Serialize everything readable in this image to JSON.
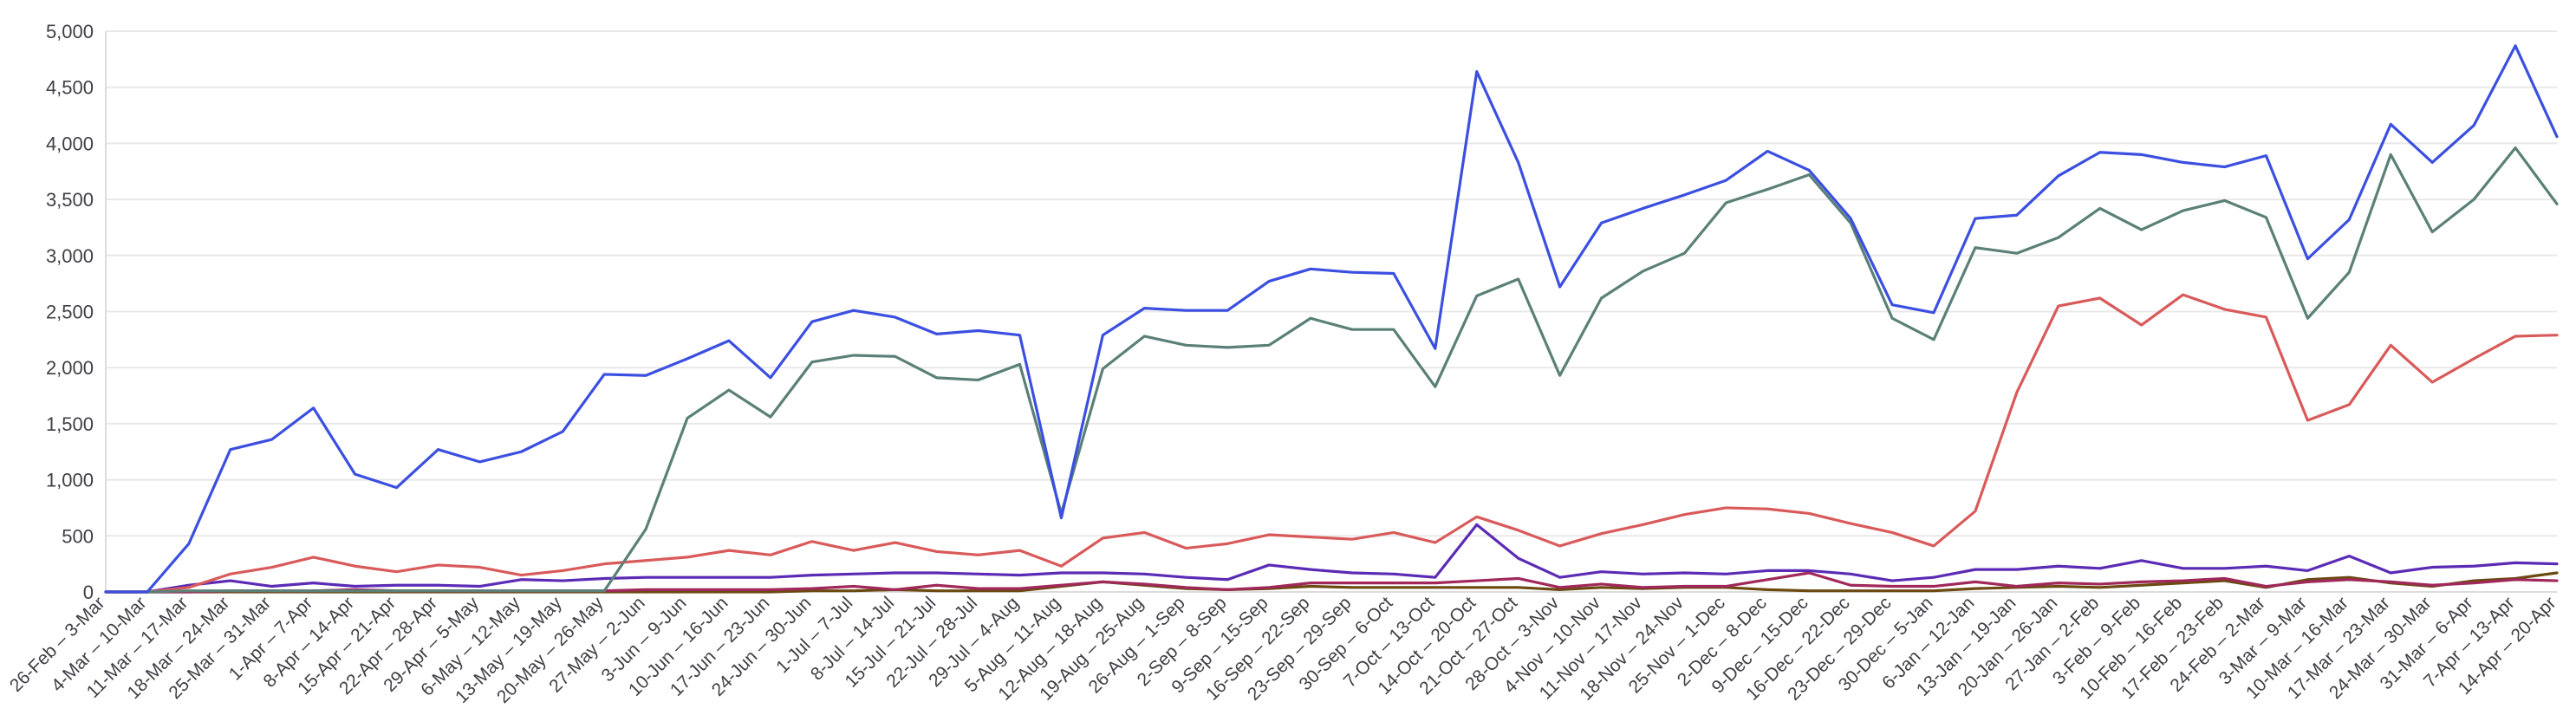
{
  "chart_data": {
    "type": "line",
    "title": "",
    "xlabel": "",
    "ylabel": "",
    "ylim": [
      0,
      5000
    ],
    "y_ticks": [
      "0",
      "500",
      "1,000",
      "1,500",
      "2,000",
      "2,500",
      "3,000",
      "3,500",
      "4,000",
      "4,500",
      "5,000"
    ],
    "grid": true,
    "legend": "none",
    "categories": [
      "26-Feb – 3-Mar",
      "4-Mar – 10-Mar",
      "11-Mar – 17-Mar",
      "18-Mar – 24-Mar",
      "25-Mar – 31-Mar",
      "1-Apr – 7-Apr",
      "8-Apr – 14-Apr",
      "15-Apr – 21-Apr",
      "22-Apr – 28-Apr",
      "29-Apr – 5-May",
      "6-May – 12-May",
      "13-May – 19-May",
      "20-May – 26-May",
      "27-May – 2-Jun",
      "3-Jun – 9-Jun",
      "10-Jun – 16-Jun",
      "17-Jun – 23-Jun",
      "24-Jun – 30-Jun",
      "1-Jul – 7-Jul",
      "8-Jul – 14-Jul",
      "15-Jul – 21-Jul",
      "22-Jul – 28-Jul",
      "29-Jul – 4-Aug",
      "5-Aug – 11-Aug",
      "12-Aug – 18-Aug",
      "19-Aug – 25-Aug",
      "26-Aug – 1-Sep",
      "2-Sep – 8-Sep",
      "9-Sep – 15-Sep",
      "16-Sep – 22-Sep",
      "23-Sep – 29-Sep",
      "30-Sep – 6-Oct",
      "7-Oct – 13-Oct",
      "14-Oct – 20-Oct",
      "21-Oct – 27-Oct",
      "28-Oct – 3-Nov",
      "4-Nov – 10-Nov",
      "11-Nov – 17-Nov",
      "18-Nov – 24-Nov",
      "25-Nov – 1-Dec",
      "2-Dec – 8-Dec",
      "9-Dec – 15-Dec",
      "16-Dec – 22-Dec",
      "23-Dec – 29-Dec",
      "30-Dec – 5-Jan",
      "6-Jan – 12-Jan",
      "13-Jan – 19-Jan",
      "20-Jan – 26-Jan",
      "27-Jan – 2-Feb",
      "3-Feb – 9-Feb",
      "10-Feb – 16-Feb",
      "17-Feb – 23-Feb",
      "24-Feb – 2-Mar",
      "3-Mar – 9-Mar",
      "10-Mar – 16-Mar",
      "17-Mar – 23-Mar",
      "24-Mar – 30-Mar",
      "31-Mar – 6-Apr",
      "7-Apr – 13-Apr",
      "14-Apr – 20-Apr"
    ],
    "series": [
      {
        "color": "#3b4fe0",
        "values": [
          0,
          0,
          430,
          1270,
          1360,
          1640,
          1050,
          930,
          1270,
          1160,
          1250,
          1430,
          1940,
          1930,
          2080,
          2240,
          1910,
          2410,
          2510,
          2450,
          2300,
          2330,
          2290,
          660,
          2290,
          2530,
          2510,
          2510,
          2770,
          2880,
          2850,
          2840,
          2170,
          4640,
          3830,
          2720,
          3290,
          3420,
          3540,
          3670,
          3930,
          3760,
          3330,
          2560,
          2490,
          3330,
          3360,
          3710,
          3920,
          3900,
          3830,
          3790,
          3890,
          2970,
          3320,
          4170,
          3830,
          4160,
          4870,
          4060
        ]
      },
      {
        "color": "#5a8078",
        "values": [
          0,
          0,
          10,
          10,
          10,
          10,
          10,
          10,
          10,
          10,
          10,
          10,
          10,
          560,
          1550,
          1800,
          1560,
          2050,
          2110,
          2100,
          1910,
          1890,
          2030,
          700,
          1990,
          2280,
          2200,
          2180,
          2200,
          2440,
          2340,
          2340,
          1830,
          2640,
          2790,
          1930,
          2620,
          2860,
          3020,
          3470,
          3590,
          3720,
          3290,
          2440,
          2250,
          3070,
          3020,
          3160,
          3420,
          3230,
          3400,
          3490,
          3340,
          2440,
          2850,
          3900,
          3210,
          3500,
          3960,
          3460
        ]
      },
      {
        "color": "#d95a5a",
        "values": [
          0,
          0,
          40,
          160,
          220,
          310,
          230,
          180,
          240,
          220,
          150,
          190,
          250,
          280,
          310,
          370,
          330,
          450,
          370,
          440,
          360,
          330,
          370,
          230,
          480,
          530,
          390,
          430,
          510,
          490,
          470,
          530,
          440,
          670,
          550,
          410,
          520,
          600,
          690,
          750,
          740,
          700,
          610,
          530,
          410,
          720,
          1780,
          2550,
          2620,
          2380,
          2650,
          2520,
          2450,
          1530,
          1670,
          2200,
          1870,
          2080,
          2280,
          2290
        ]
      },
      {
        "color": "#5b2bb5",
        "values": [
          0,
          0,
          60,
          100,
          50,
          80,
          50,
          60,
          60,
          50,
          110,
          100,
          120,
          130,
          130,
          130,
          130,
          150,
          160,
          170,
          170,
          160,
          150,
          170,
          170,
          160,
          130,
          110,
          240,
          200,
          170,
          160,
          130,
          600,
          300,
          130,
          180,
          160,
          170,
          160,
          190,
          190,
          160,
          100,
          130,
          200,
          200,
          230,
          210,
          280,
          210,
          210,
          230,
          190,
          320,
          170,
          220,
          230,
          260,
          250
        ]
      },
      {
        "color": "#a0285a",
        "values": [
          0,
          0,
          0,
          10,
          10,
          10,
          20,
          10,
          10,
          10,
          10,
          10,
          10,
          20,
          20,
          20,
          20,
          30,
          50,
          20,
          60,
          30,
          30,
          60,
          90,
          70,
          40,
          20,
          40,
          80,
          80,
          80,
          80,
          100,
          120,
          40,
          70,
          40,
          50,
          50,
          110,
          170,
          60,
          50,
          50,
          90,
          50,
          80,
          70,
          90,
          100,
          120,
          50,
          90,
          110,
          90,
          60,
          80,
          110,
          100
        ]
      },
      {
        "color": "#6b4a12",
        "values": [
          0,
          0,
          0,
          0,
          0,
          0,
          0,
          0,
          0,
          0,
          0,
          0,
          0,
          0,
          0,
          0,
          0,
          10,
          10,
          20,
          10,
          10,
          10,
          50,
          90,
          60,
          30,
          20,
          30,
          50,
          40,
          40,
          40,
          40,
          40,
          20,
          40,
          30,
          40,
          40,
          20,
          10,
          10,
          10,
          10,
          30,
          40,
          50,
          40,
          60,
          80,
          100,
          40,
          110,
          130,
          80,
          50,
          100,
          120,
          170
        ]
      }
    ]
  }
}
